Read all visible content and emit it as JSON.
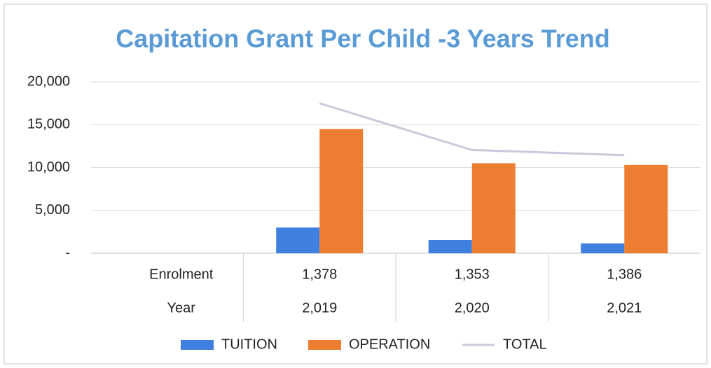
{
  "chart_data": {
    "type": "bar",
    "title": "Capitation  Grant Per Child -3 Years Trend",
    "x_table": {
      "rows": [
        {
          "name": "Enrolment",
          "values": [
            "1,378",
            "1,353",
            "1,386"
          ]
        },
        {
          "name": "Year",
          "values": [
            "2,019",
            "2,020",
            "2,021"
          ]
        }
      ]
    },
    "series": [
      {
        "name": "TUITION",
        "type": "bar",
        "color": "#3f7fdf",
        "values": [
          3000,
          1550,
          1150
        ]
      },
      {
        "name": "OPERATION",
        "type": "bar",
        "color": "#ed7d31",
        "values": [
          14500,
          10500,
          10300
        ]
      },
      {
        "name": "TOTAL",
        "type": "line",
        "color": "#c8c9dc",
        "values": [
          17500,
          12050,
          11450
        ]
      }
    ],
    "ylim": [
      0,
      20000
    ],
    "yticks": [
      {
        "value": 0,
        "label": "-"
      },
      {
        "value": 5000,
        "label": "5,000"
      },
      {
        "value": 10000,
        "label": "10,000"
      },
      {
        "value": 15000,
        "label": "15,000"
      },
      {
        "value": 20000,
        "label": "20,000"
      }
    ],
    "grid": true,
    "legend": "bottom"
  }
}
